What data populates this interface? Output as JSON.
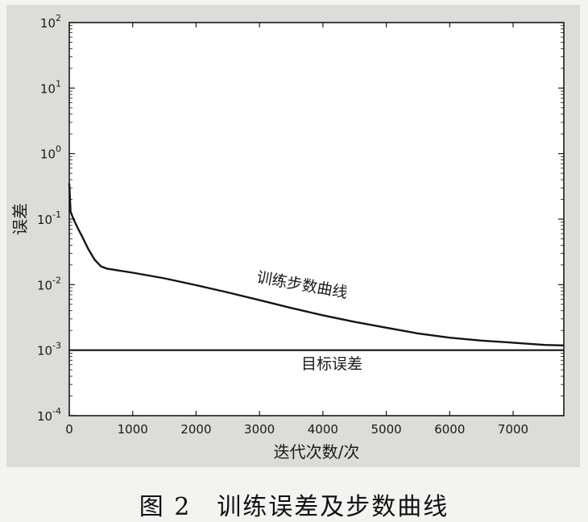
{
  "caption": "图 2　训练误差及步数曲线",
  "chart_data": {
    "type": "line",
    "title": "",
    "xlabel": "迭代次数/次",
    "ylabel": "误差",
    "xlim": [
      0,
      7800
    ],
    "ylim": [
      0.0001,
      100
    ],
    "yscale": "log",
    "grid": false,
    "x_ticks": [
      0,
      1000,
      2000,
      3000,
      4000,
      5000,
      6000,
      7000
    ],
    "y_ticks": [
      {
        "value": 0.0001,
        "base": "10",
        "exp": "-4"
      },
      {
        "value": 0.001,
        "base": "10",
        "exp": "-3"
      },
      {
        "value": 0.01,
        "base": "10",
        "exp": "-2"
      },
      {
        "value": 0.1,
        "base": "10",
        "exp": "-1"
      },
      {
        "value": 1,
        "base": "10",
        "exp": "0"
      },
      {
        "value": 10,
        "base": "10",
        "exp": "1"
      },
      {
        "value": 100,
        "base": "10",
        "exp": "2"
      }
    ],
    "series": [
      {
        "label": "训练步数曲线",
        "x": [
          0,
          20,
          50,
          100,
          150,
          200,
          300,
          400,
          500,
          600,
          800,
          1000,
          1500,
          2000,
          2500,
          3000,
          3500,
          4000,
          4500,
          5000,
          5500,
          6000,
          6500,
          7000,
          7500,
          7800
        ],
        "y": [
          0.35,
          0.13,
          0.11,
          0.085,
          0.068,
          0.055,
          0.035,
          0.024,
          0.019,
          0.0175,
          0.0163,
          0.0152,
          0.0125,
          0.0098,
          0.0076,
          0.0058,
          0.0044,
          0.0034,
          0.0027,
          0.0022,
          0.0018,
          0.00155,
          0.0014,
          0.0013,
          0.0012,
          0.00118
        ]
      },
      {
        "label": "目标误差",
        "x": [
          0,
          7800
        ],
        "y": [
          0.001,
          0.001
        ]
      }
    ]
  }
}
